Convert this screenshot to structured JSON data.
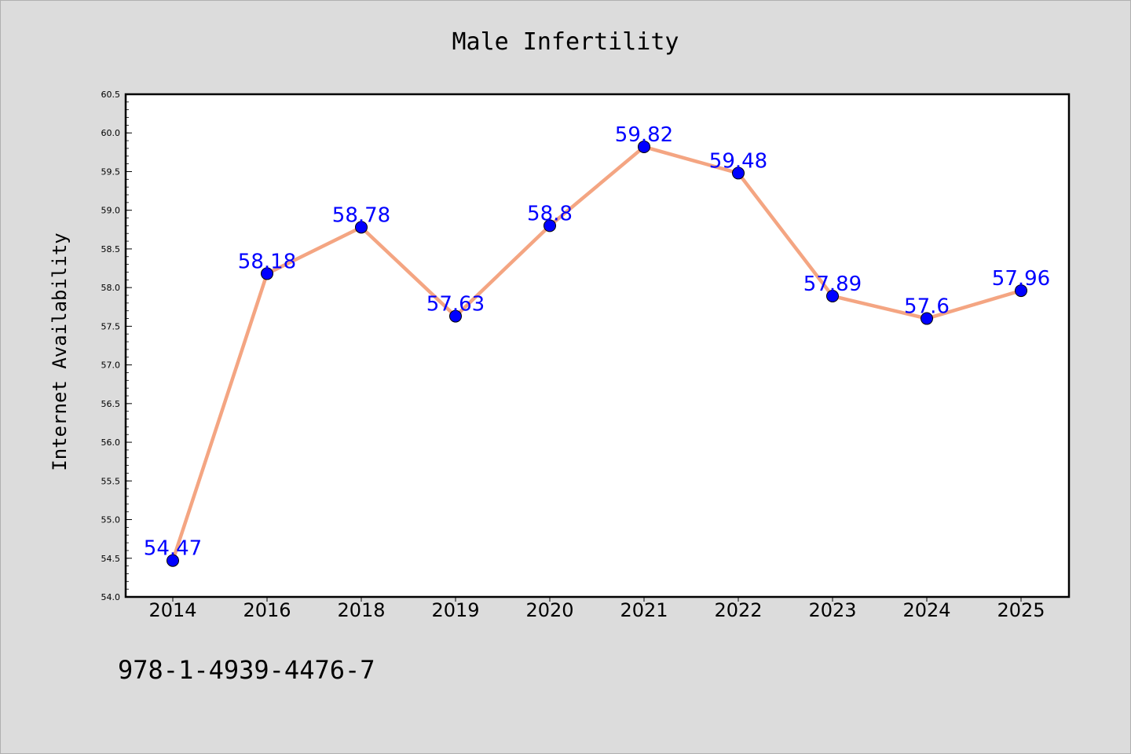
{
  "chart_data": {
    "type": "line",
    "title": "Male Infertility",
    "xlabel": "",
    "ylabel": "Internet Availability",
    "categories": [
      "2014",
      "2016",
      "2018",
      "2019",
      "2020",
      "2021",
      "2022",
      "2023",
      "2024",
      "2025"
    ],
    "values": [
      54.47,
      58.18,
      58.78,
      57.63,
      58.8,
      59.82,
      59.48,
      57.89,
      57.6,
      57.96
    ],
    "data_labels": [
      "54.47",
      "58.18",
      "58.78",
      "57.63",
      "58.8",
      "59.82",
      "59.48",
      "57.89",
      "57.6",
      "57.96"
    ],
    "ylim": [
      54.0,
      60.5
    ],
    "yticks": [
      "54.0",
      "54.5",
      "55.0",
      "55.5",
      "56.0",
      "56.5",
      "57.0",
      "57.5",
      "58.0",
      "58.5",
      "59.0",
      "59.5",
      "60.0",
      "60.5"
    ],
    "grid": false,
    "line_color": "#f4a582",
    "marker_color": "#0000ff",
    "label_color": "#0000ff",
    "plot_background": "#ffffff",
    "figure_background": "#dcdcdc"
  },
  "footer": {
    "text": "978-1-4939-4476-7"
  }
}
